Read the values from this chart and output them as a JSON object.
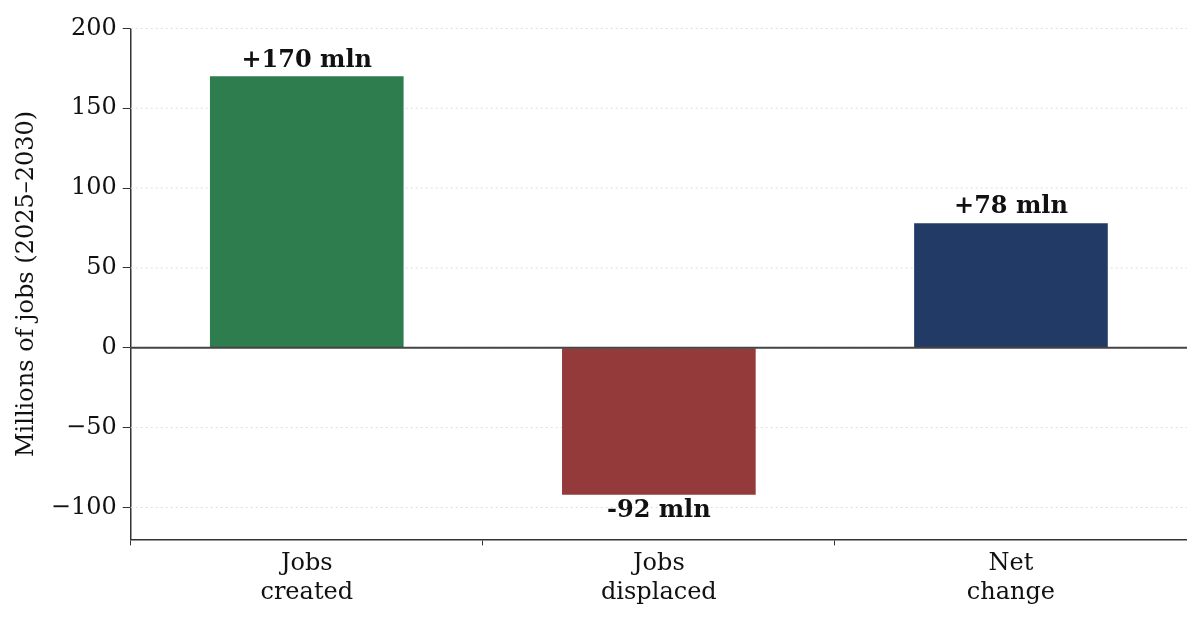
{
  "chart_data": {
    "type": "bar",
    "ylabel": "Millions of jobs (2025–2030)",
    "categories": [
      "Jobs\ncreated",
      "Jobs\ndisplaced",
      "Net\nchange"
    ],
    "values": [
      170,
      -92,
      78
    ],
    "colors": [
      "#2e7d4f",
      "#943a3a",
      "#213a66"
    ],
    "value_labels": [
      "+170 mln",
      "-92 mln",
      "+78 mln"
    ],
    "ylim": [
      -120,
      200
    ],
    "yticks": [
      {
        "value": -100,
        "label": "−100"
      },
      {
        "value": -50,
        "label": "−50"
      },
      0,
      50,
      100,
      150,
      200
    ],
    "grid": "y",
    "legend": false,
    "ref_lines": [
      {
        "axis": "y",
        "value": 0,
        "color": "#444444"
      }
    ]
  }
}
